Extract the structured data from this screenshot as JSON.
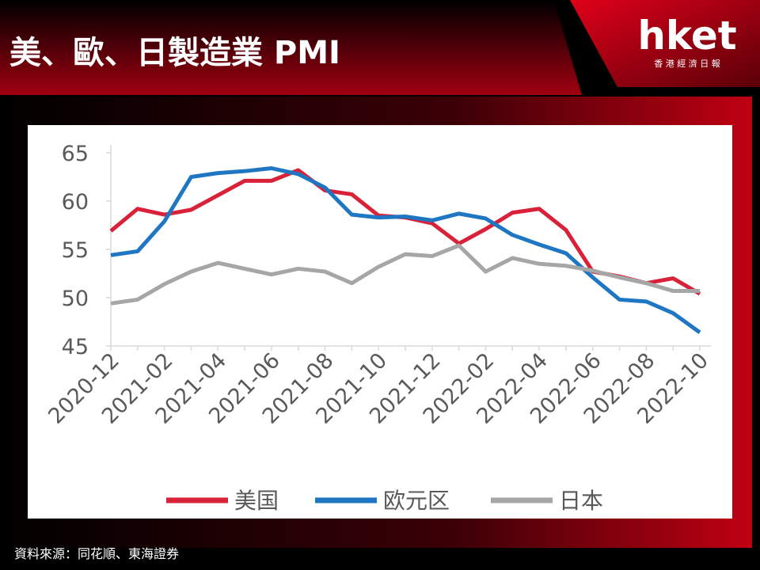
{
  "header": {
    "title": "美、歐、日製造業 PMI",
    "logo": "hket",
    "logo_sub": "香 港 經 濟 日 報"
  },
  "source": "資料來源：同花順、東海證券",
  "chart_data": {
    "type": "line",
    "categories": [
      "2020-12",
      null,
      "2021-02",
      null,
      "2021-04",
      null,
      "2021-06",
      null,
      "2021-08",
      null,
      "2021-10",
      null,
      "2021-12",
      null,
      "2022-02",
      null,
      "2022-04",
      null,
      "2022-06",
      null,
      "2022-08",
      null,
      "2022-10"
    ],
    "series": [
      {
        "name": "美国",
        "color": "#d9213a",
        "values": [
          56.9,
          59.2,
          58.6,
          59.1,
          60.6,
          62.1,
          62.1,
          63.2,
          61.1,
          60.7,
          58.5,
          58.3,
          57.7,
          55.6,
          57.1,
          58.8,
          59.2,
          57.0,
          52.7,
          52.2,
          51.5,
          52.0,
          50.4
        ]
      },
      {
        "name": "欧元区",
        "color": "#1f77c4",
        "values": [
          54.4,
          54.8,
          57.9,
          62.5,
          62.9,
          63.1,
          63.4,
          62.8,
          61.4,
          58.6,
          58.3,
          58.4,
          58.0,
          58.7,
          58.2,
          56.5,
          55.5,
          54.6,
          52.1,
          49.8,
          49.6,
          48.4,
          46.4
        ]
      },
      {
        "name": "日本",
        "color": "#a6a6a6",
        "values": [
          49.4,
          49.8,
          51.4,
          52.7,
          53.6,
          53.0,
          52.4,
          53.0,
          52.7,
          51.5,
          53.2,
          54.5,
          54.3,
          55.4,
          52.7,
          54.1,
          53.5,
          53.3,
          52.8,
          52.1,
          51.5,
          50.7,
          50.7
        ]
      }
    ],
    "ylim": [
      45,
      65
    ],
    "yticks": [
      45,
      50,
      55,
      60,
      65
    ],
    "grid": false,
    "legend": "bottom"
  }
}
